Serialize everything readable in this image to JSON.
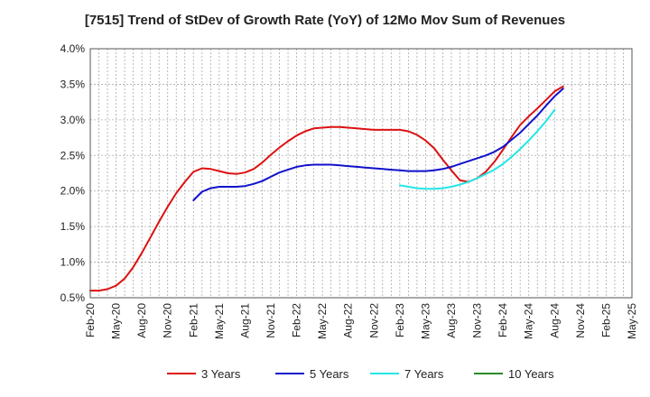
{
  "chart_data": {
    "type": "line",
    "title": "[7515]  Trend of StDev of Growth Rate (YoY) of 12Mo Mov Sum of Revenues",
    "xlabel": "",
    "ylabel": "",
    "x_ticks": [
      "Feb-20",
      "May-20",
      "Aug-20",
      "Nov-20",
      "Feb-21",
      "May-21",
      "Aug-21",
      "Nov-21",
      "Feb-22",
      "May-22",
      "Aug-22",
      "Nov-22",
      "Feb-23",
      "May-23",
      "Aug-23",
      "Nov-23",
      "Feb-24",
      "May-24",
      "Aug-24",
      "Nov-24",
      "Feb-25",
      "May-25"
    ],
    "y_ticks": [
      0.5,
      1.0,
      1.5,
      2.0,
      2.5,
      3.0,
      3.5,
      4.0
    ],
    "y_tick_labels": [
      "0.5%",
      "1.0%",
      "1.5%",
      "2.0%",
      "2.5%",
      "3.0%",
      "3.5%",
      "4.0%"
    ],
    "ylim": [
      0.5,
      4.0
    ],
    "x_range_months": [
      0,
      63
    ],
    "grid": true,
    "legend_position": "bottom",
    "series": [
      {
        "name": "3 Years",
        "color": "#dd1111",
        "points": [
          [
            0,
            0.6
          ],
          [
            1,
            0.6
          ],
          [
            2,
            0.62
          ],
          [
            3,
            0.67
          ],
          [
            4,
            0.77
          ],
          [
            5,
            0.93
          ],
          [
            6,
            1.13
          ],
          [
            7,
            1.35
          ],
          [
            8,
            1.57
          ],
          [
            9,
            1.78
          ],
          [
            10,
            1.97
          ],
          [
            11,
            2.13
          ],
          [
            12,
            2.27
          ],
          [
            13,
            2.32
          ],
          [
            14,
            2.31
          ],
          [
            15,
            2.28
          ],
          [
            16,
            2.25
          ],
          [
            17,
            2.24
          ],
          [
            18,
            2.26
          ],
          [
            19,
            2.31
          ],
          [
            20,
            2.4
          ],
          [
            21,
            2.51
          ],
          [
            22,
            2.61
          ],
          [
            23,
            2.7
          ],
          [
            24,
            2.78
          ],
          [
            25,
            2.84
          ],
          [
            26,
            2.88
          ],
          [
            27,
            2.89
          ],
          [
            28,
            2.9
          ],
          [
            29,
            2.9
          ],
          [
            30,
            2.89
          ],
          [
            31,
            2.88
          ],
          [
            32,
            2.87
          ],
          [
            33,
            2.86
          ],
          [
            34,
            2.86
          ],
          [
            35,
            2.86
          ],
          [
            36,
            2.86
          ],
          [
            37,
            2.84
          ],
          [
            38,
            2.79
          ],
          [
            39,
            2.71
          ],
          [
            40,
            2.6
          ],
          [
            41,
            2.44
          ],
          [
            42,
            2.29
          ],
          [
            43,
            2.15
          ],
          [
            44,
            2.13
          ],
          [
            45,
            2.18
          ],
          [
            46,
            2.27
          ],
          [
            47,
            2.41
          ],
          [
            48,
            2.58
          ],
          [
            49,
            2.76
          ],
          [
            50,
            2.93
          ],
          [
            51,
            3.05
          ],
          [
            52,
            3.16
          ],
          [
            53,
            3.28
          ],
          [
            54,
            3.4
          ],
          [
            55,
            3.47
          ]
        ]
      },
      {
        "name": "5 Years",
        "color": "#1111cc",
        "points": [
          [
            12,
            1.87
          ],
          [
            13,
            1.99
          ],
          [
            14,
            2.04
          ],
          [
            15,
            2.06
          ],
          [
            16,
            2.06
          ],
          [
            17,
            2.06
          ],
          [
            18,
            2.07
          ],
          [
            19,
            2.1
          ],
          [
            20,
            2.14
          ],
          [
            21,
            2.2
          ],
          [
            22,
            2.26
          ],
          [
            23,
            2.3
          ],
          [
            24,
            2.34
          ],
          [
            25,
            2.36
          ],
          [
            26,
            2.37
          ],
          [
            27,
            2.37
          ],
          [
            28,
            2.37
          ],
          [
            29,
            2.36
          ],
          [
            30,
            2.35
          ],
          [
            31,
            2.34
          ],
          [
            32,
            2.33
          ],
          [
            33,
            2.32
          ],
          [
            34,
            2.31
          ],
          [
            35,
            2.3
          ],
          [
            36,
            2.29
          ],
          [
            37,
            2.28
          ],
          [
            38,
            2.28
          ],
          [
            39,
            2.28
          ],
          [
            40,
            2.29
          ],
          [
            41,
            2.31
          ],
          [
            42,
            2.34
          ],
          [
            43,
            2.38
          ],
          [
            44,
            2.42
          ],
          [
            45,
            2.46
          ],
          [
            46,
            2.5
          ],
          [
            47,
            2.55
          ],
          [
            48,
            2.62
          ],
          [
            49,
            2.72
          ],
          [
            50,
            2.82
          ],
          [
            51,
            2.94
          ],
          [
            52,
            3.06
          ],
          [
            53,
            3.2
          ],
          [
            54,
            3.33
          ],
          [
            55,
            3.44
          ]
        ]
      },
      {
        "name": "7 Years",
        "color": "#22e6e6",
        "points": [
          [
            36,
            2.08
          ],
          [
            37,
            2.06
          ],
          [
            38,
            2.04
          ],
          [
            39,
            2.03
          ],
          [
            40,
            2.03
          ],
          [
            41,
            2.04
          ],
          [
            42,
            2.06
          ],
          [
            43,
            2.09
          ],
          [
            44,
            2.13
          ],
          [
            45,
            2.18
          ],
          [
            46,
            2.24
          ],
          [
            47,
            2.3
          ],
          [
            48,
            2.38
          ],
          [
            49,
            2.48
          ],
          [
            50,
            2.59
          ],
          [
            51,
            2.71
          ],
          [
            52,
            2.84
          ],
          [
            53,
            2.98
          ],
          [
            54,
            3.14
          ]
        ]
      },
      {
        "name": "10 Years",
        "color": "#2a8a2a",
        "points": []
      }
    ]
  }
}
